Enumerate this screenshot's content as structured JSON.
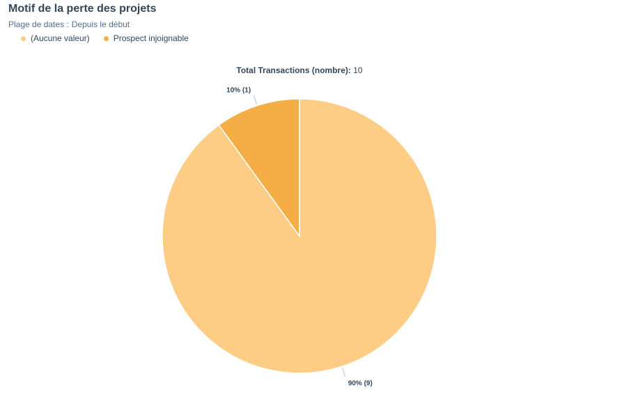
{
  "header": {
    "title": "Motif de la perte des projets",
    "date_range_label": "Plage de dates :",
    "date_range_value": "Depuis le début"
  },
  "total": {
    "label": "Total Transactions (nombre):",
    "value": "10"
  },
  "chart_data": {
    "type": "pie",
    "title": "Motif de la perte des projets",
    "legend_position": "top-left",
    "slices": [
      {
        "name": "(Aucune valeur)",
        "value": 9,
        "percent": 90,
        "label": "90% (9)",
        "color": "#fecd85"
      },
      {
        "name": "Prospect injoignable",
        "value": 1,
        "percent": 10,
        "label": "10% (1)",
        "color": "#f5ae45"
      }
    ]
  }
}
